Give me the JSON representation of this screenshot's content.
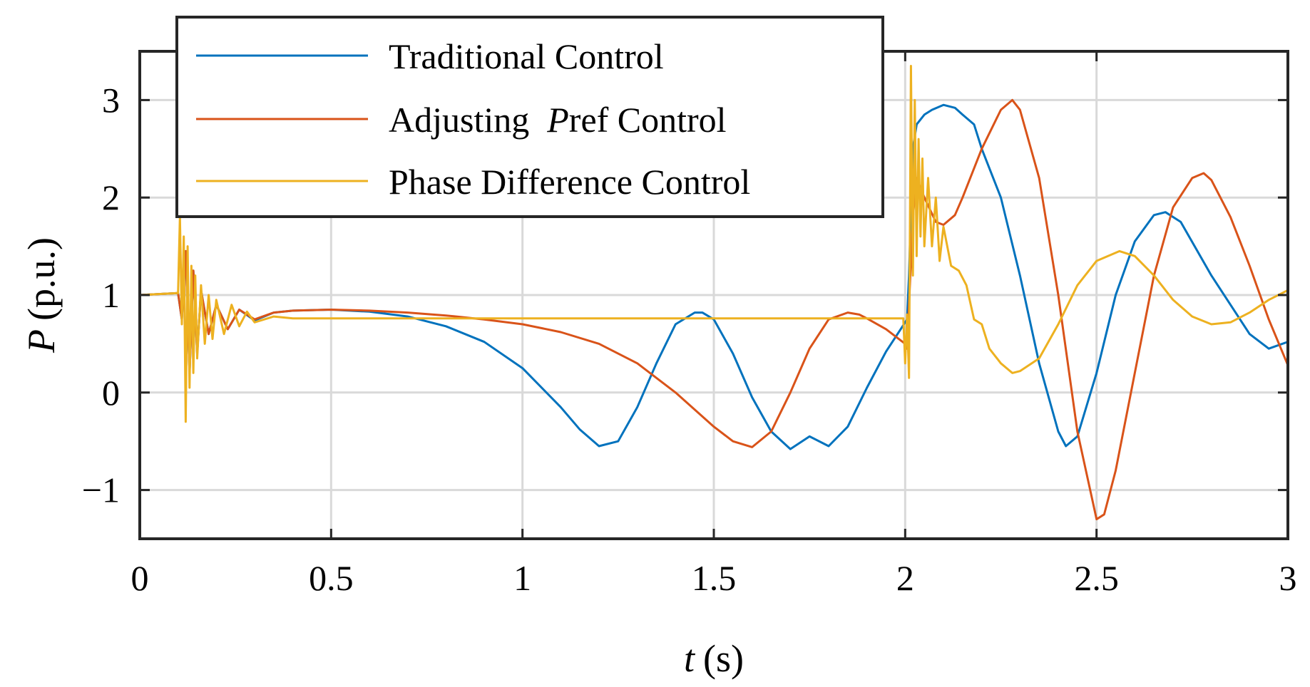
{
  "chart_data": {
    "type": "line",
    "title": "",
    "xlabel": "t",
    "xlabel_unit": "(s)",
    "ylabel": "P",
    "ylabel_unit": "(p.u.)",
    "xlim": [
      0,
      3
    ],
    "ylim": [
      -1.5,
      3.5
    ],
    "xticks": [
      0,
      0.5,
      1,
      1.5,
      2,
      2.5,
      3
    ],
    "xtick_labels": [
      "0",
      "0.5",
      "1",
      "1.5",
      "2",
      "2.5",
      "3"
    ],
    "yticks": [
      -1,
      0,
      1,
      2,
      3
    ],
    "ytick_labels": [
      "−1",
      "0",
      "1",
      "2",
      "3"
    ],
    "grid": true,
    "legend_position": "top-left",
    "series": [
      {
        "name": "Traditional Control",
        "legend_prefix": "Traditional Control",
        "legend_italic": "",
        "legend_suffix": "",
        "color": "#0072BD",
        "x": [
          0,
          0.1,
          0.11,
          0.12,
          0.13,
          0.14,
          0.15,
          0.16,
          0.18,
          0.2,
          0.23,
          0.26,
          0.3,
          0.35,
          0.4,
          0.5,
          0.6,
          0.7,
          0.8,
          0.9,
          1.0,
          1.1,
          1.15,
          1.2,
          1.25,
          1.3,
          1.35,
          1.4,
          1.45,
          1.47,
          1.5,
          1.55,
          1.6,
          1.65,
          1.7,
          1.75,
          1.8,
          1.85,
          1.9,
          1.95,
          2.0,
          2.005,
          2.01,
          2.02,
          2.03,
          2.05,
          2.07,
          2.1,
          2.13,
          2.15,
          2.18,
          2.2,
          2.25,
          2.3,
          2.35,
          2.4,
          2.42,
          2.45,
          2.5,
          2.55,
          2.6,
          2.65,
          2.68,
          2.72,
          2.8,
          2.9,
          2.95,
          3.0
        ],
        "y": [
          1.0,
          1.02,
          0.75,
          1.45,
          0.2,
          1.25,
          0.4,
          1.05,
          0.6,
          0.9,
          0.65,
          0.85,
          0.74,
          0.82,
          0.84,
          0.85,
          0.83,
          0.78,
          0.68,
          0.52,
          0.25,
          -0.15,
          -0.38,
          -0.55,
          -0.5,
          -0.15,
          0.3,
          0.7,
          0.82,
          0.82,
          0.75,
          0.4,
          -0.05,
          -0.4,
          -0.58,
          -0.45,
          -0.55,
          -0.35,
          0.05,
          0.42,
          0.72,
          0.75,
          1.2,
          2.5,
          2.75,
          2.85,
          2.9,
          2.95,
          2.92,
          2.85,
          2.75,
          2.5,
          2.0,
          1.2,
          0.3,
          -0.4,
          -0.55,
          -0.45,
          0.2,
          1.0,
          1.55,
          1.82,
          1.85,
          1.75,
          1.2,
          0.6,
          0.45,
          0.52
        ]
      },
      {
        "name": "Adjusting Pref Control",
        "legend_prefix": "Adjusting  ",
        "legend_italic": "P",
        "legend_suffix": "ref Control",
        "color": "#D95319",
        "x": [
          0,
          0.1,
          0.11,
          0.12,
          0.13,
          0.14,
          0.15,
          0.16,
          0.18,
          0.2,
          0.23,
          0.26,
          0.3,
          0.35,
          0.4,
          0.5,
          0.6,
          0.7,
          0.8,
          0.9,
          1.0,
          1.1,
          1.2,
          1.3,
          1.4,
          1.5,
          1.55,
          1.6,
          1.65,
          1.7,
          1.75,
          1.8,
          1.85,
          1.88,
          1.9,
          1.95,
          2.0,
          2.005,
          2.01,
          2.02,
          2.03,
          2.05,
          2.08,
          2.1,
          2.13,
          2.15,
          2.2,
          2.25,
          2.28,
          2.3,
          2.35,
          2.4,
          2.45,
          2.5,
          2.52,
          2.55,
          2.6,
          2.65,
          2.7,
          2.75,
          2.78,
          2.8,
          2.85,
          2.9,
          2.95,
          3.0
        ],
        "y": [
          1.0,
          1.02,
          0.75,
          1.45,
          0.2,
          1.25,
          0.4,
          1.05,
          0.6,
          0.9,
          0.65,
          0.85,
          0.75,
          0.82,
          0.84,
          0.85,
          0.84,
          0.82,
          0.79,
          0.75,
          0.7,
          0.62,
          0.5,
          0.3,
          0.0,
          -0.35,
          -0.5,
          -0.56,
          -0.4,
          0.0,
          0.45,
          0.75,
          0.82,
          0.8,
          0.76,
          0.65,
          0.5,
          0.45,
          0.9,
          1.8,
          2.2,
          2.0,
          1.75,
          1.72,
          1.82,
          2.0,
          2.5,
          2.9,
          3.0,
          2.9,
          2.2,
          1.0,
          -0.4,
          -1.3,
          -1.25,
          -0.8,
          0.2,
          1.2,
          1.9,
          2.2,
          2.25,
          2.18,
          1.8,
          1.3,
          0.75,
          0.28
        ]
      },
      {
        "name": "Phase Difference Control",
        "legend_prefix": "Phase Difference Control",
        "legend_italic": "",
        "legend_suffix": "",
        "color": "#EDB120",
        "x": [
          0,
          0.1,
          0.105,
          0.11,
          0.115,
          0.12,
          0.125,
          0.13,
          0.135,
          0.14,
          0.145,
          0.15,
          0.16,
          0.17,
          0.18,
          0.19,
          0.2,
          0.22,
          0.24,
          0.26,
          0.28,
          0.3,
          0.35,
          0.4,
          0.5,
          0.6,
          0.8,
          1.0,
          1.5,
          1.9,
          1.995,
          2.0,
          2.005,
          2.01,
          2.015,
          2.02,
          2.025,
          2.03,
          2.035,
          2.04,
          2.045,
          2.05,
          2.06,
          2.07,
          2.08,
          2.09,
          2.1,
          2.12,
          2.14,
          2.16,
          2.18,
          2.2,
          2.22,
          2.25,
          2.28,
          2.3,
          2.35,
          2.4,
          2.45,
          2.5,
          2.56,
          2.6,
          2.65,
          2.7,
          2.75,
          2.8,
          2.85,
          2.9,
          2.95,
          3.0
        ],
        "y": [
          1.0,
          1.02,
          1.8,
          0.7,
          1.6,
          -0.3,
          1.5,
          0.05,
          1.3,
          0.2,
          1.2,
          0.35,
          1.1,
          0.5,
          1.0,
          0.55,
          0.95,
          0.6,
          0.9,
          0.68,
          0.83,
          0.72,
          0.78,
          0.76,
          0.76,
          0.76,
          0.76,
          0.76,
          0.76,
          0.76,
          0.76,
          0.3,
          0.8,
          0.15,
          3.35,
          1.2,
          3.0,
          1.4,
          2.6,
          1.6,
          2.4,
          1.5,
          2.2,
          1.5,
          2.0,
          1.35,
          1.7,
          1.3,
          1.25,
          1.1,
          0.75,
          0.7,
          0.45,
          0.3,
          0.2,
          0.22,
          0.35,
          0.7,
          1.1,
          1.35,
          1.45,
          1.4,
          1.2,
          0.95,
          0.78,
          0.7,
          0.72,
          0.82,
          0.95,
          1.05
        ]
      }
    ]
  }
}
